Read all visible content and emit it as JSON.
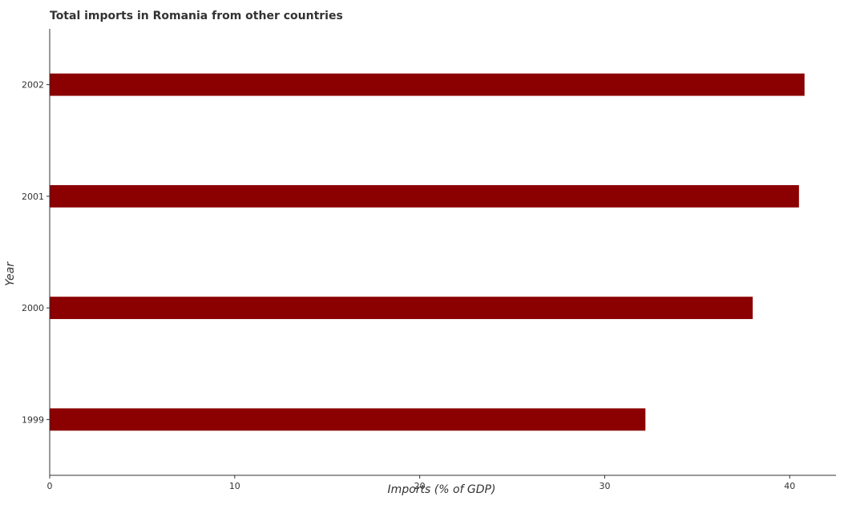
{
  "chart_data": {
    "type": "bar",
    "orientation": "horizontal",
    "title": "Total imports in Romania from other countries",
    "xlabel": "Imports (% of GDP)",
    "ylabel": "Year",
    "categories": [
      "1999",
      "2000",
      "2001",
      "2002"
    ],
    "series": [
      {
        "values": [
          32.2,
          38.0,
          40.5,
          40.8
        ]
      }
    ],
    "xlim": [
      0,
      42.5
    ],
    "xticks": [
      0,
      10,
      20,
      30,
      40
    ],
    "xtick_labels": [
      "0",
      "10",
      "20",
      "30",
      "40"
    ],
    "grid": false,
    "legend": "none",
    "bar_color": "#8b0000"
  }
}
